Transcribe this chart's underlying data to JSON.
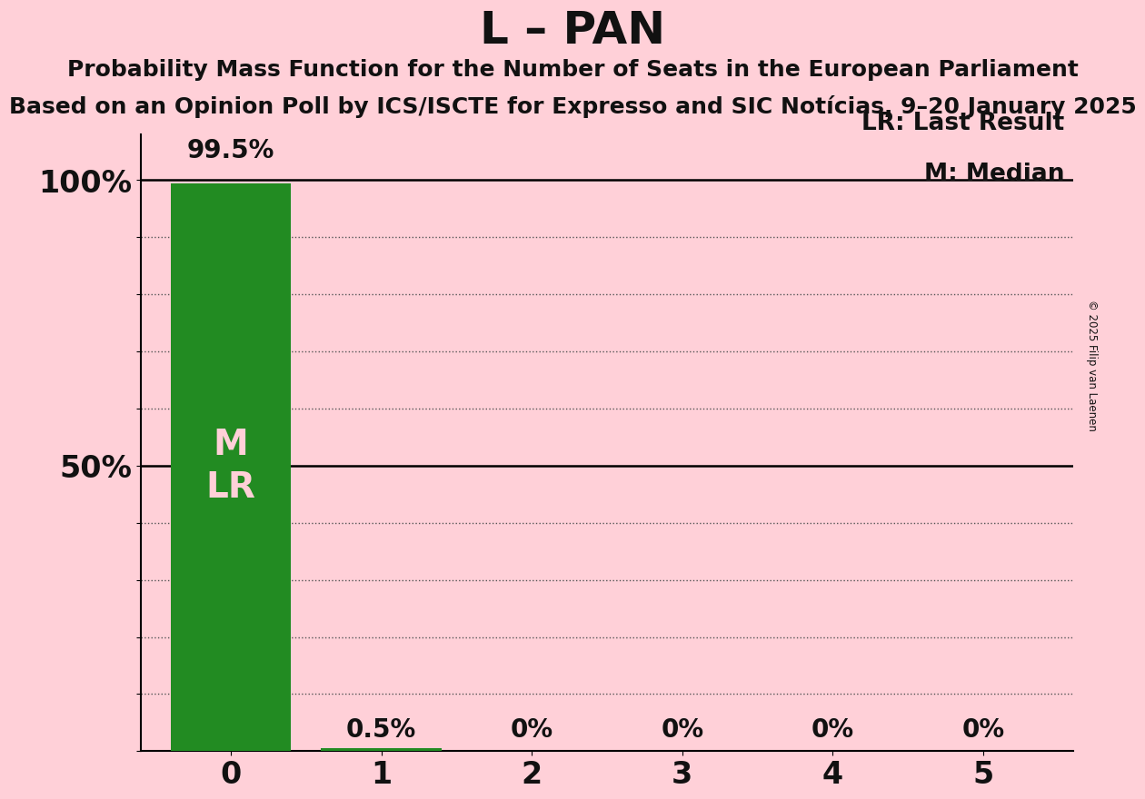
{
  "title": "L – PAN",
  "subtitle1": "Probability Mass Function for the Number of Seats in the European Parliament",
  "subtitle2": "Based on an Opinion Poll by ICS/ISCTE for Expresso and SIC Notícias, 9–20 January 2025",
  "copyright": "© 2025 Filip van Laenen",
  "seats": [
    0,
    1,
    2,
    3,
    4,
    5
  ],
  "probabilities": [
    99.5,
    0.5,
    0.0,
    0.0,
    0.0,
    0.0
  ],
  "bar_color": "#228B22",
  "background_color": "#FFD0D8",
  "median": 0,
  "last_result": 0,
  "yticks": [
    0,
    10,
    20,
    30,
    40,
    50,
    60,
    70,
    80,
    90,
    100
  ],
  "legend_lr": "LR: Last Result",
  "legend_m": "M: Median",
  "bar_label_color": "#FFD0D8",
  "axis_label_color": "#111111",
  "title_fontsize": 36,
  "subtitle_fontsize": 18,
  "bar_label_fontsize": 20,
  "tick_fontsize": 24,
  "legend_fontsize": 19,
  "inside_label_fontsize": 28
}
